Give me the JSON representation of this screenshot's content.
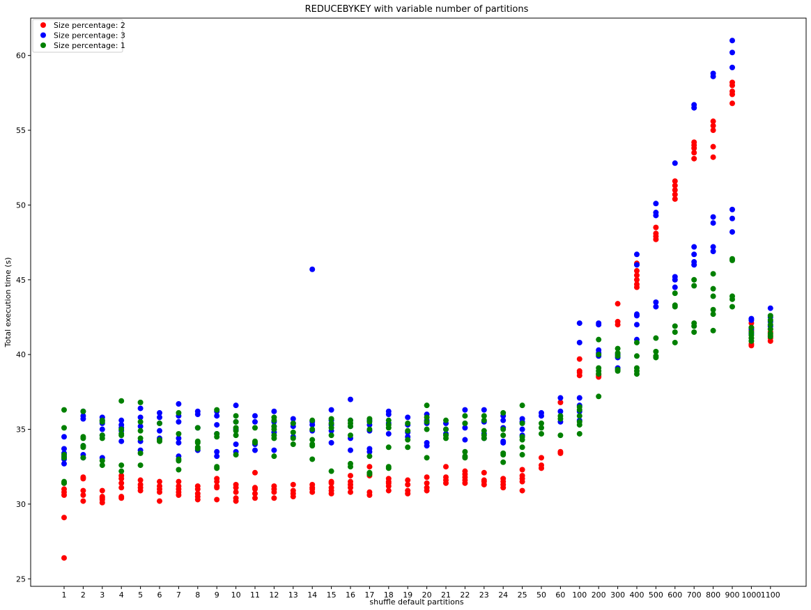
{
  "chart_data": {
    "type": "scatter",
    "title": "REDUCEBYKEY with variable number of partitions",
    "xlabel": "shuffle default partitions",
    "ylabel": "Total execution time (s)",
    "ylim": [
      24.5,
      62.5
    ],
    "yticks": [
      25,
      30,
      35,
      40,
      45,
      50,
      55,
      60
    ],
    "grid": false,
    "legend_position": "top-left",
    "categories": [
      "1",
      "2",
      "3",
      "4",
      "5",
      "6",
      "7",
      "8",
      "9",
      "10",
      "11",
      "12",
      "13",
      "14",
      "15",
      "16",
      "17",
      "18",
      "19",
      "20",
      "21",
      "22",
      "23",
      "24",
      "25",
      "50",
      "60",
      "100",
      "200",
      "300",
      "400",
      "500",
      "600",
      "700",
      "800",
      "900",
      "1000",
      "1100"
    ],
    "series": [
      {
        "name": "Size percentage: 2",
        "color": "#ff0000",
        "values": [
          [
            26.4,
            29.1,
            30.6,
            30.8,
            31.0,
            31.4
          ],
          [
            30.2,
            30.6,
            30.9,
            31.7,
            31.8
          ],
          [
            30.1,
            30.3,
            30.4,
            30.5,
            30.9
          ],
          [
            30.4,
            30.5,
            31.1,
            31.4,
            31.7,
            31.9
          ],
          [
            30.9,
            31.1,
            31.3,
            31.6
          ],
          [
            30.2,
            30.8,
            31.0,
            31.2,
            31.5
          ],
          [
            30.6,
            30.8,
            31.0,
            31.2,
            31.5
          ],
          [
            30.3,
            30.5,
            30.7,
            31.0,
            31.2
          ],
          [
            30.3,
            31.1,
            31.2,
            31.5,
            31.7
          ],
          [
            30.2,
            30.4,
            30.8,
            31.1,
            31.3
          ],
          [
            30.4,
            30.7,
            31.0,
            31.1,
            32.1
          ],
          [
            30.4,
            30.8,
            31.0,
            31.2
          ],
          [
            30.5,
            30.7,
            30.9,
            31.3
          ],
          [
            30.8,
            31.0,
            31.1,
            31.3
          ],
          [
            30.7,
            30.9,
            31.1,
            31.4,
            31.5
          ],
          [
            30.8,
            31.1,
            31.3,
            31.5,
            31.9
          ],
          [
            30.6,
            30.8,
            31.9,
            32.0,
            32.5
          ],
          [
            30.9,
            31.2,
            31.4,
            31.5,
            31.7
          ],
          [
            30.7,
            30.9,
            31.3,
            31.6
          ],
          [
            30.9,
            31.1,
            31.4,
            31.8
          ],
          [
            31.4,
            31.6,
            31.8,
            32.5
          ],
          [
            31.4,
            31.6,
            31.8,
            32.0,
            32.2
          ],
          [
            31.3,
            31.5,
            31.6,
            32.1
          ],
          [
            31.1,
            31.3,
            31.5,
            31.7
          ],
          [
            30.9,
            31.5,
            31.7,
            31.9,
            32.3
          ],
          [
            32.4,
            32.6,
            33.1
          ],
          [
            33.4,
            33.5,
            36.8
          ],
          [
            38.6,
            38.8,
            38.9,
            39.7
          ],
          [
            38.5,
            38.6,
            38.7
          ],
          [
            42.0,
            42.2,
            43.4
          ],
          [
            44.5,
            44.7,
            45.0,
            45.3,
            45.6,
            46.1
          ],
          [
            47.7,
            47.9,
            48.1,
            48.5
          ],
          [
            50.4,
            50.7,
            51.0,
            51.3,
            51.6
          ],
          [
            53.1,
            53.5,
            53.8,
            54.0,
            54.2
          ],
          [
            53.2,
            53.9,
            55.0,
            55.3,
            55.6
          ],
          [
            56.8,
            57.4,
            57.6,
            58.0,
            58.2
          ],
          [
            40.6,
            40.7,
            41.1,
            41.6,
            41.8,
            42.1
          ],
          [
            40.9,
            41.1,
            41.3,
            41.5,
            41.7
          ]
        ]
      },
      {
        "name": "Size percentage: 3",
        "color": "#0000ff",
        "values": [
          [
            32.7,
            33.0,
            33.2,
            33.4,
            33.7,
            34.5
          ],
          [
            33.1,
            33.3,
            33.9,
            35.7,
            35.9,
            36.2
          ],
          [
            33.1,
            34.6,
            35.0,
            35.4,
            35.6,
            35.8
          ],
          [
            34.2,
            34.9,
            35.1,
            35.3,
            35.6
          ],
          [
            33.6,
            34.2,
            35.2,
            35.8,
            36.4
          ],
          [
            34.4,
            34.9,
            35.4,
            35.8,
            36.1
          ],
          [
            33.2,
            34.1,
            34.4,
            35.5,
            35.9,
            36.7
          ],
          [
            33.6,
            35.1,
            36.0,
            36.2
          ],
          [
            33.2,
            33.5,
            34.7,
            35.3,
            35.9,
            36.2
          ],
          [
            33.5,
            34.0,
            35.0,
            35.5,
            36.6
          ],
          [
            33.6,
            34.0,
            35.5,
            35.9
          ],
          [
            33.6,
            34.8,
            35.2,
            35.5,
            36.2
          ],
          [
            34.5,
            35.2,
            35.4,
            35.7
          ],
          [
            34.9,
            35.3,
            35.5,
            45.7
          ],
          [
            34.1,
            34.9,
            35.3,
            35.6,
            36.3
          ],
          [
            33.6,
            34.4,
            35.2,
            35.6,
            37.0
          ],
          [
            33.5,
            33.7,
            34.9,
            35.3,
            35.6
          ],
          [
            34.7,
            35.4,
            36.0,
            36.2
          ],
          [
            34.5,
            34.8,
            35.3,
            35.8
          ],
          [
            33.9,
            34.1,
            35.4,
            35.6,
            36.0
          ],
          [
            34.7,
            35.0,
            35.4
          ],
          [
            34.3,
            35.1,
            35.4,
            36.3
          ],
          [
            34.4,
            34.7,
            35.5,
            36.3
          ],
          [
            34.1,
            34.2,
            35.1,
            35.6,
            35.9
          ],
          [
            34.6,
            35.0,
            35.5,
            35.7
          ],
          [
            35.9,
            36.1
          ],
          [
            35.5,
            36.2,
            37.1
          ],
          [
            35.6,
            36.2,
            36.6,
            37.1,
            40.8,
            42.1
          ],
          [
            39.9,
            40.1,
            40.3,
            42.0,
            42.1
          ],
          [
            39.1,
            39.8,
            40.0
          ],
          [
            41.0,
            42.0,
            42.6,
            42.7,
            46.0,
            46.7
          ],
          [
            43.2,
            43.5,
            49.3,
            49.5,
            50.1
          ],
          [
            44.5,
            45.0,
            45.2,
            52.8
          ],
          [
            46.0,
            46.2,
            46.7,
            47.2,
            56.5,
            56.7
          ],
          [
            46.9,
            47.2,
            48.8,
            49.2,
            58.6,
            58.8
          ],
          [
            48.2,
            49.1,
            49.7,
            59.2,
            60.2,
            61.0
          ],
          [
            41.4,
            41.7,
            42.3,
            42.4
          ],
          [
            41.9,
            42.2,
            42.5,
            43.1
          ]
        ]
      },
      {
        "name": "Size percentage: 1",
        "color": "#008000",
        "values": [
          [
            31.4,
            31.5,
            33.1,
            33.3,
            35.1,
            36.3
          ],
          [
            33.1,
            33.8,
            33.9,
            34.4,
            34.5,
            36.2
          ],
          [
            32.6,
            32.9,
            34.4,
            34.6,
            35.5,
            35.6
          ],
          [
            32.2,
            32.6,
            34.6,
            34.7,
            35.0,
            36.9
          ],
          [
            32.6,
            33.4,
            34.4,
            34.9,
            35.5,
            36.8
          ],
          [
            34.2,
            34.3,
            35.4
          ],
          [
            32.3,
            32.9,
            33.0,
            34.7,
            36.1
          ],
          [
            33.7,
            33.8,
            34.1,
            34.2,
            35.1
          ],
          [
            32.4,
            32.5,
            34.5,
            34.7,
            36.3
          ],
          [
            33.3,
            34.6,
            34.9,
            35.1,
            35.5,
            35.9
          ],
          [
            34.1,
            34.2,
            35.1
          ],
          [
            33.2,
            34.4,
            34.6,
            35.0,
            35.2,
            35.6,
            35.8
          ],
          [
            34.0,
            34.4,
            34.8,
            35.4
          ],
          [
            33.0,
            33.9,
            34.0,
            34.3,
            35.0,
            35.6
          ],
          [
            32.2,
            34.6,
            35.1,
            35.4,
            35.7
          ],
          [
            32.5,
            32.7,
            34.6,
            35.2,
            35.4,
            35.6
          ],
          [
            32.0,
            32.1,
            33.2,
            35.0,
            35.5,
            35.7
          ],
          [
            32.4,
            32.5,
            33.8,
            35.1,
            35.3,
            35.6
          ],
          [
            33.8,
            34.3,
            34.9,
            35.4
          ],
          [
            33.1,
            35.0,
            35.5,
            35.8,
            36.6
          ],
          [
            34.4,
            34.6,
            35.0,
            35.6
          ],
          [
            33.1,
            33.2,
            33.5,
            35.4,
            35.9
          ],
          [
            34.4,
            34.6,
            34.9,
            35.6,
            35.9
          ],
          [
            32.8,
            33.3,
            33.4,
            34.6,
            35.0,
            36.1
          ],
          [
            33.3,
            33.8,
            34.3,
            34.5,
            35.4,
            36.6
          ],
          [
            34.7,
            35.1,
            35.4
          ],
          [
            34.6,
            35.7,
            35.9
          ],
          [
            34.7,
            35.3,
            35.5,
            35.9,
            36.3,
            36.5
          ],
          [
            37.2,
            38.7,
            38.9,
            39.1,
            40.0,
            41.0
          ],
          [
            38.9,
            39.0,
            39.9,
            40.1,
            40.4
          ],
          [
            38.7,
            38.9,
            39.1,
            39.9,
            40.8
          ],
          [
            39.8,
            39.9,
            40.2,
            41.1
          ],
          [
            40.8,
            41.5,
            41.9,
            43.2,
            43.3,
            44.1
          ],
          [
            41.5,
            41.9,
            42.1,
            44.6,
            45.0
          ],
          [
            41.6,
            42.7,
            43.0,
            43.9,
            44.4,
            45.4
          ],
          [
            43.2,
            43.7,
            43.9,
            46.3,
            46.4
          ],
          [
            40.9,
            41.1,
            41.3,
            41.5,
            41.8
          ],
          [
            41.2,
            41.4,
            41.7,
            42.0,
            42.3,
            42.6
          ]
        ]
      }
    ]
  }
}
